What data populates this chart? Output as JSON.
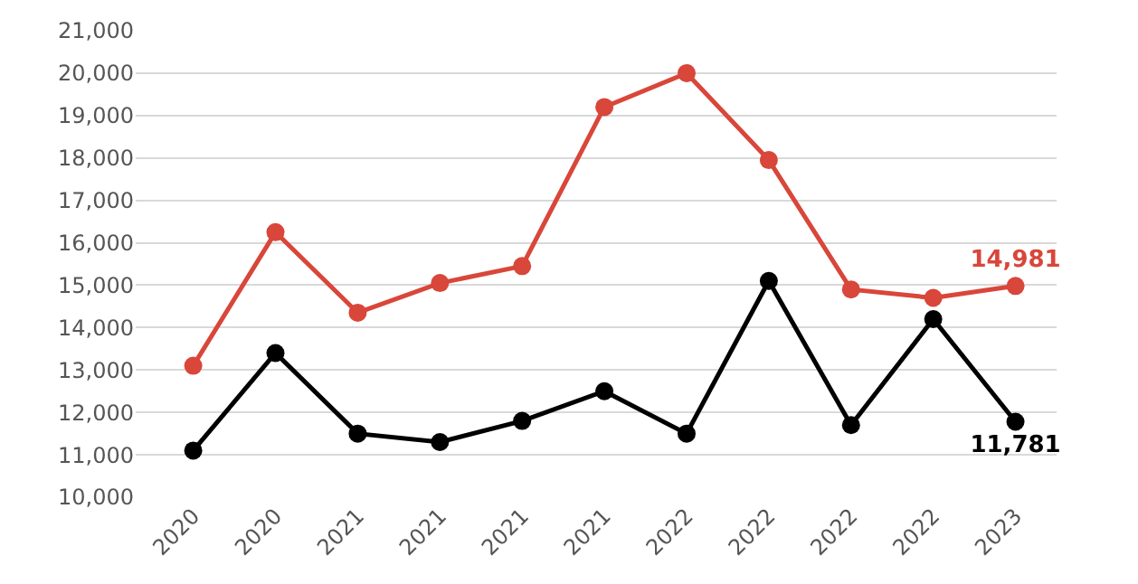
{
  "chart_data": {
    "type": "line",
    "categories": [
      "2020",
      "2020",
      "2021",
      "2021",
      "2021",
      "2021",
      "2022",
      "2022",
      "2022",
      "2022",
      "2023"
    ],
    "series": [
      {
        "color": "#d9463a",
        "values": [
          13100,
          16250,
          14350,
          15050,
          15450,
          19200,
          20000,
          17950,
          14900,
          14700,
          14981
        ],
        "value_labels": [
          null,
          null,
          null,
          null,
          null,
          null,
          null,
          null,
          null,
          null,
          "14,981"
        ]
      },
      {
        "color": "#000000",
        "values": [
          11100,
          13400,
          11500,
          11300,
          11800,
          12500,
          11500,
          15100,
          11700,
          14200,
          11781
        ],
        "value_labels": [
          null,
          null,
          null,
          null,
          null,
          null,
          null,
          null,
          null,
          null,
          "11,781"
        ]
      }
    ],
    "ylim": [
      10000,
      21000
    ],
    "yticks": [
      {
        "value": 10000,
        "label": "10,000"
      },
      {
        "value": 11000,
        "label": "11,000"
      },
      {
        "value": 12000,
        "label": "12,000"
      },
      {
        "value": 13000,
        "label": "13,000"
      },
      {
        "value": 14000,
        "label": "14,000"
      },
      {
        "value": 15000,
        "label": "15,000"
      },
      {
        "value": 16000,
        "label": "16,000"
      },
      {
        "value": 17000,
        "label": "17,000"
      },
      {
        "value": 18000,
        "label": "18,000"
      },
      {
        "value": 19000,
        "label": "19,000"
      },
      {
        "value": 20000,
        "label": "20,000"
      },
      {
        "value": 21000,
        "label": "21,000"
      }
    ],
    "grid": "y",
    "legend": false,
    "marker": "circle",
    "line_style": "solid"
  }
}
